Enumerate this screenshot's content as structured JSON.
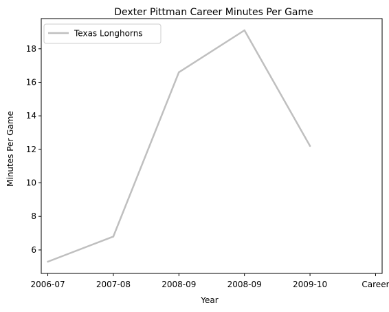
{
  "chart_data": {
    "type": "line",
    "title": "Dexter Pittman Career Minutes Per Game",
    "xlabel": "Year",
    "ylabel": "Minutes Per Game",
    "x_ticks": [
      {
        "label": "2006-07",
        "x": 0.0
      },
      {
        "label": "2007-08",
        "x": 1.0
      },
      {
        "label": "2008-09",
        "x": 2.0
      },
      {
        "label": "2008-09",
        "x": 3.0
      },
      {
        "label": "2009-10",
        "x": 4.0
      },
      {
        "label": "Career",
        "x": 5.0
      }
    ],
    "xlim": [
      -0.1,
      5.1
    ],
    "ylim": [
      4.6,
      19.8
    ],
    "y_ticks": [
      6,
      8,
      10,
      12,
      14,
      16,
      18
    ],
    "legend_position": "top-left",
    "grid": false,
    "series": [
      {
        "name": "Texas Longhorns",
        "color": "#bfbfbf",
        "points": [
          {
            "x": 0.0,
            "y": 5.3
          },
          {
            "x": 1.0,
            "y": 6.8
          },
          {
            "x": 2.0,
            "y": 16.6
          },
          {
            "x": 3.0,
            "y": 19.1
          },
          {
            "x": 4.0,
            "y": 12.2
          }
        ]
      }
    ]
  }
}
